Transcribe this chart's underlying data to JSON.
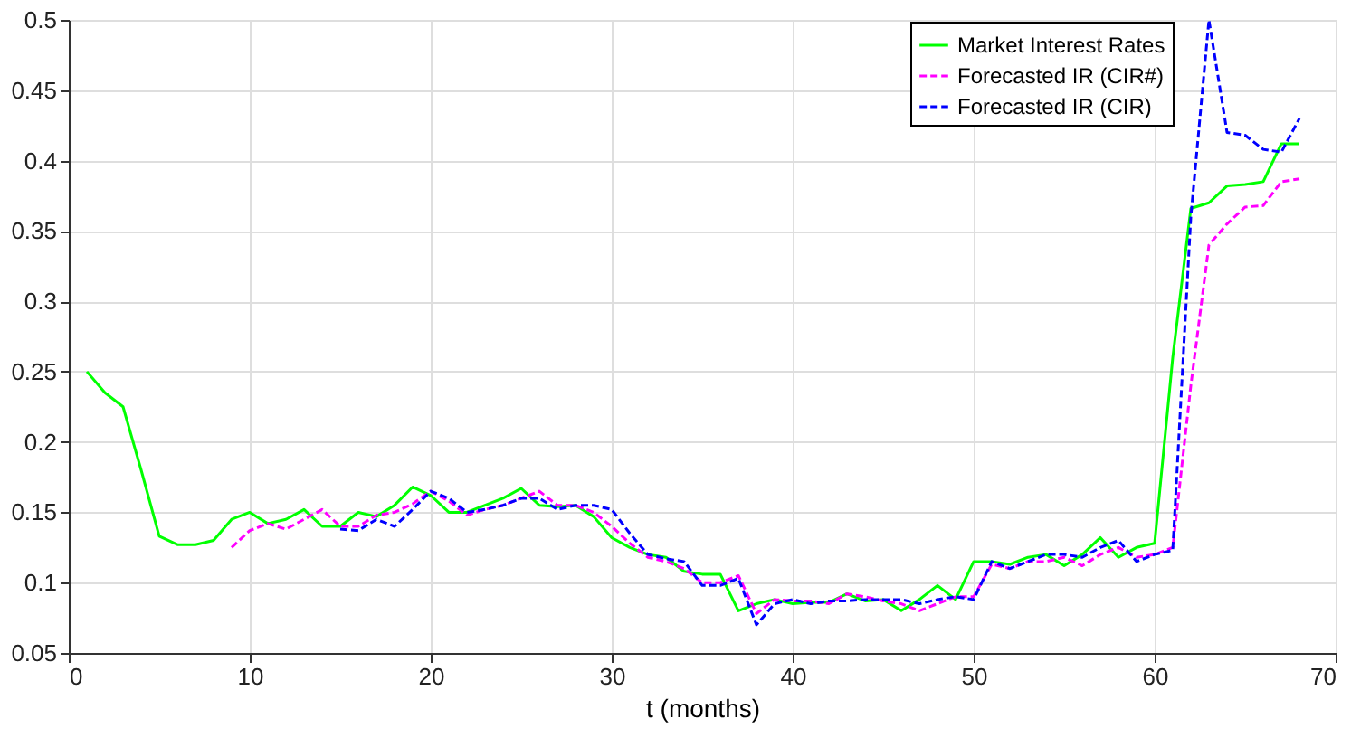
{
  "chart_data": {
    "type": "line",
    "xlabel": "t (months)",
    "xlim": [
      0,
      70
    ],
    "xticks": [
      0,
      10,
      20,
      30,
      40,
      50,
      60,
      70
    ],
    "ylim": [
      0.05,
      0.5
    ],
    "yticks": [
      0.05,
      0.1,
      0.15,
      0.2,
      0.25,
      0.3,
      0.35,
      0.4,
      0.45,
      0.5
    ],
    "grid": true,
    "legend": "top right",
    "marker": "none",
    "series": [
      {
        "name": "Market Interest Rates",
        "color": "#00ff00",
        "line_style": "solid",
        "x": [
          1,
          2,
          3,
          4,
          5,
          6,
          7,
          8,
          9,
          10,
          11,
          12,
          13,
          14,
          15,
          16,
          17,
          18,
          19,
          20,
          21,
          22,
          23,
          24,
          25,
          26,
          27,
          28,
          29,
          30,
          31,
          32,
          33,
          34,
          35,
          36,
          37,
          38,
          39,
          40,
          41,
          42,
          43,
          44,
          45,
          46,
          47,
          48,
          49,
          50,
          51,
          52,
          53,
          54,
          55,
          56,
          57,
          58,
          59,
          60,
          61,
          62,
          63,
          64,
          65,
          66,
          67,
          68
        ],
        "values": [
          0.25,
          0.235,
          0.225,
          0.18,
          0.133,
          0.127,
          0.127,
          0.13,
          0.145,
          0.15,
          0.142,
          0.145,
          0.152,
          0.14,
          0.14,
          0.15,
          0.147,
          0.155,
          0.168,
          0.162,
          0.15,
          0.15,
          0.155,
          0.16,
          0.167,
          0.155,
          0.154,
          0.155,
          0.147,
          0.132,
          0.125,
          0.12,
          0.118,
          0.108,
          0.106,
          0.106,
          0.08,
          0.085,
          0.088,
          0.085,
          0.086,
          0.086,
          0.092,
          0.087,
          0.088,
          0.08,
          0.088,
          0.098,
          0.088,
          0.115,
          0.115,
          0.113,
          0.118,
          0.12,
          0.112,
          0.12,
          0.132,
          0.118,
          0.125,
          0.128,
          0.26,
          0.366,
          0.37,
          0.382,
          0.383,
          0.385,
          0.412,
          0.412
        ]
      },
      {
        "name": "Forecasted IR (CIR#)",
        "color": "#ff00ff",
        "line_style": "dashed",
        "x": [
          9,
          10,
          11,
          12,
          13,
          14,
          15,
          16,
          17,
          18,
          19,
          20,
          21,
          22,
          23,
          24,
          25,
          26,
          27,
          28,
          29,
          30,
          31,
          32,
          33,
          34,
          35,
          36,
          37,
          38,
          39,
          40,
          41,
          42,
          43,
          44,
          45,
          46,
          47,
          48,
          49,
          50,
          51,
          52,
          53,
          54,
          55,
          56,
          57,
          58,
          59,
          60,
          61,
          62,
          63,
          64,
          65,
          66,
          67,
          68
        ],
        "values": [
          0.125,
          0.137,
          0.142,
          0.138,
          0.145,
          0.152,
          0.14,
          0.14,
          0.148,
          0.15,
          0.156,
          0.165,
          0.158,
          0.148,
          0.152,
          0.155,
          0.16,
          0.165,
          0.155,
          0.155,
          0.15,
          0.14,
          0.128,
          0.118,
          0.115,
          0.11,
          0.1,
          0.1,
          0.105,
          0.078,
          0.088,
          0.087,
          0.087,
          0.085,
          0.092,
          0.09,
          0.087,
          0.085,
          0.08,
          0.085,
          0.09,
          0.09,
          0.113,
          0.11,
          0.115,
          0.115,
          0.118,
          0.112,
          0.12,
          0.125,
          0.118,
          0.12,
          0.125,
          0.24,
          0.34,
          0.355,
          0.367,
          0.368,
          0.385,
          0.387
        ]
      },
      {
        "name": "Forecasted IR (CIR)",
        "color": "#0000ff",
        "line_style": "dashed",
        "x": [
          15,
          16,
          17,
          18,
          19,
          20,
          21,
          22,
          23,
          24,
          25,
          26,
          27,
          28,
          29,
          30,
          31,
          32,
          33,
          34,
          35,
          36,
          37,
          38,
          39,
          40,
          41,
          42,
          43,
          44,
          45,
          46,
          47,
          48,
          49,
          50,
          51,
          52,
          53,
          54,
          55,
          56,
          57,
          58,
          59,
          60,
          61,
          62,
          63,
          64,
          65,
          66,
          67,
          68
        ],
        "values": [
          0.138,
          0.137,
          0.145,
          0.14,
          0.152,
          0.165,
          0.16,
          0.15,
          0.152,
          0.155,
          0.16,
          0.16,
          0.152,
          0.155,
          0.155,
          0.152,
          0.135,
          0.12,
          0.117,
          0.115,
          0.098,
          0.098,
          0.103,
          0.07,
          0.085,
          0.088,
          0.085,
          0.087,
          0.087,
          0.088,
          0.088,
          0.088,
          0.085,
          0.088,
          0.09,
          0.088,
          0.115,
          0.11,
          0.115,
          0.12,
          0.12,
          0.118,
          0.125,
          0.13,
          0.115,
          0.12,
          0.123,
          0.36,
          0.5,
          0.42,
          0.418,
          0.408,
          0.406,
          0.43
        ]
      }
    ]
  }
}
